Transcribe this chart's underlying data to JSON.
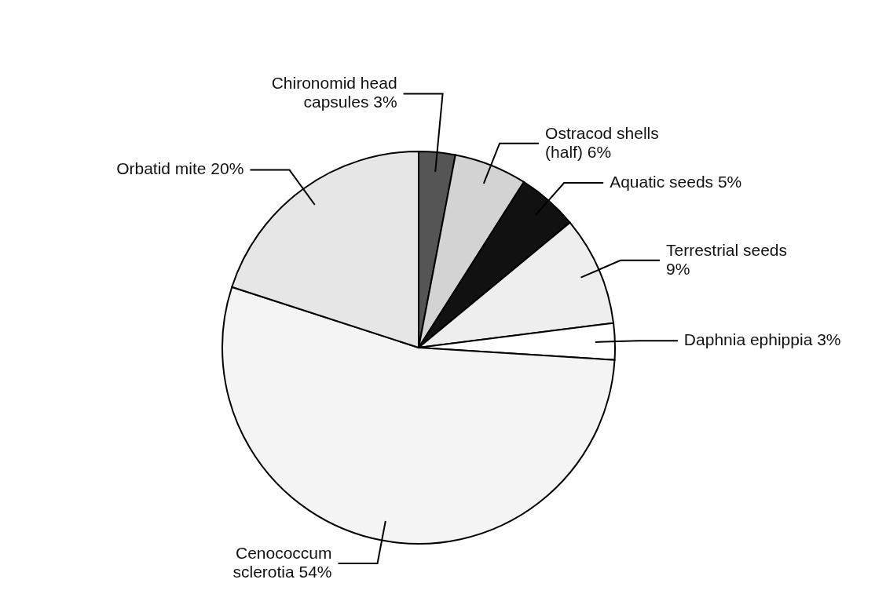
{
  "chart_data": {
    "type": "pie",
    "categories": [
      "Chironomid head capsules",
      "Ostracod shells (half)",
      "Aquatic seeds",
      "Terrestrial seeds",
      "Daphnia ephippia",
      "Cenococcum sclerotia",
      "Orbatid mite"
    ],
    "values": [
      3,
      6,
      5,
      9,
      3,
      54,
      20
    ],
    "value_labels": [
      "3%",
      "6%",
      "5%",
      "9%",
      "3%",
      "54%",
      "20%"
    ],
    "colors": [
      "#555555",
      "#d3d3d3",
      "#111111",
      "#eeeeee",
      "#ffffff",
      "#f4f4f4",
      "#e6e6e6"
    ],
    "legend": false
  }
}
